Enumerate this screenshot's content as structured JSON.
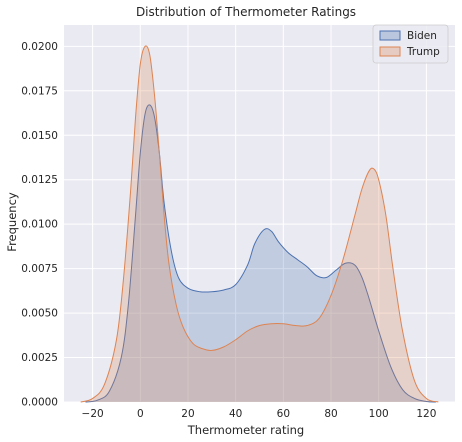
{
  "chart_data": {
    "type": "area",
    "title": "Distribution of Thermometer Ratings",
    "xlabel": "Thermometer rating",
    "ylabel": "Frequency",
    "xlim": [
      -32,
      132
    ],
    "ylim": [
      0,
      0.0212
    ],
    "xticks": [
      -20,
      0,
      20,
      40,
      60,
      80,
      100,
      120
    ],
    "yticks": [
      0.0,
      0.0025,
      0.005,
      0.0075,
      0.01,
      0.0125,
      0.015,
      0.0175,
      0.02
    ],
    "ytick_labels": [
      "0.0000",
      "0.0025",
      "0.0050",
      "0.0075",
      "0.0100",
      "0.0125",
      "0.0150",
      "0.0175",
      "0.0200"
    ],
    "grid": true,
    "legend_position": "top-right",
    "series": [
      {
        "name": "Biden",
        "fill": "#4c72b0",
        "x": [
          -23,
          -18,
          -13,
          -8,
          -5,
          -2,
          0,
          2,
          4,
          6,
          8,
          10,
          13,
          16,
          20,
          25,
          30,
          35,
          40,
          45,
          48,
          52,
          55,
          58,
          62,
          66,
          70,
          74,
          78,
          82,
          86,
          90,
          93,
          96,
          100,
          105,
          110,
          115,
          120,
          124
        ],
        "y": [
          0.0,
          0.0001,
          0.0006,
          0.0025,
          0.0055,
          0.0105,
          0.014,
          0.0162,
          0.0167,
          0.016,
          0.014,
          0.0112,
          0.0085,
          0.007,
          0.0064,
          0.0062,
          0.0062,
          0.0063,
          0.0066,
          0.0077,
          0.0089,
          0.0097,
          0.0096,
          0.009,
          0.0084,
          0.008,
          0.0076,
          0.0071,
          0.007,
          0.0074,
          0.0078,
          0.0077,
          0.007,
          0.0058,
          0.004,
          0.002,
          0.0007,
          0.0002,
          3e-05,
          0.0
        ]
      },
      {
        "name": "Trump",
        "fill": "#dd8452",
        "x": [
          -25,
          -20,
          -15,
          -10,
          -7,
          -4,
          -2,
          0,
          2,
          4,
          6,
          8,
          10,
          12,
          15,
          18,
          22,
          26,
          30,
          35,
          40,
          45,
          50,
          55,
          60,
          65,
          70,
          75,
          80,
          85,
          90,
          93,
          96,
          98,
          100,
          103,
          106,
          110,
          115,
          120,
          125
        ],
        "y": [
          0.0,
          0.0002,
          0.001,
          0.0035,
          0.007,
          0.012,
          0.016,
          0.019,
          0.02,
          0.0195,
          0.0172,
          0.014,
          0.0105,
          0.0078,
          0.0055,
          0.0042,
          0.0033,
          0.003,
          0.0029,
          0.0031,
          0.0035,
          0.004,
          0.0043,
          0.0044,
          0.0044,
          0.0043,
          0.0043,
          0.0047,
          0.006,
          0.008,
          0.0105,
          0.012,
          0.013,
          0.0131,
          0.0125,
          0.0105,
          0.0075,
          0.004,
          0.0012,
          0.0002,
          0.0
        ]
      }
    ]
  }
}
